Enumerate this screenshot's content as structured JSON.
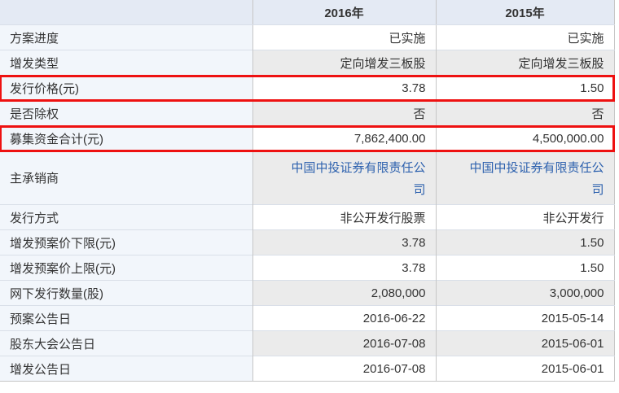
{
  "colors": {
    "highlight_border": "#ee1111",
    "link_text": "#2d61ae",
    "header_background": "#e4eaf4",
    "label_column_background": "#f2f6fb",
    "stripe_background": "#ebebeb"
  },
  "table": {
    "header": {
      "corner": "",
      "col2016": "2016年",
      "col2015": "2015年"
    },
    "rows": [
      {
        "label": "方案进度",
        "v2016": "已实施",
        "v2015": "已实施",
        "highlight": false,
        "link": false,
        "tall": false
      },
      {
        "label": "增发类型",
        "v2016": "定向增发三板股",
        "v2015": "定向增发三板股",
        "highlight": false,
        "link": false,
        "tall": false
      },
      {
        "label": "发行价格(元)",
        "v2016": "3.78",
        "v2015": "1.50",
        "highlight": true,
        "link": false,
        "tall": false
      },
      {
        "label": "是否除权",
        "v2016": "否",
        "v2015": "否",
        "highlight": false,
        "link": false,
        "tall": false
      },
      {
        "label": "募集资金合计(元)",
        "v2016": "7,862,400.00",
        "v2015": "4,500,000.00",
        "highlight": true,
        "link": false,
        "tall": false
      },
      {
        "label": "主承销商",
        "v2016": "中国中投证券有限责任公司",
        "v2015": "中国中投证券有限责任公司",
        "highlight": false,
        "link": true,
        "tall": true
      },
      {
        "label": "发行方式",
        "v2016": "非公开发行股票",
        "v2015": "非公开发行",
        "highlight": false,
        "link": false,
        "tall": false
      },
      {
        "label": "增发预案价下限(元)",
        "v2016": "3.78",
        "v2015": "1.50",
        "highlight": false,
        "link": false,
        "tall": false
      },
      {
        "label": "增发预案价上限(元)",
        "v2016": "3.78",
        "v2015": "1.50",
        "highlight": false,
        "link": false,
        "tall": false
      },
      {
        "label": "网下发行数量(股)",
        "v2016": "2,080,000",
        "v2015": "3,000,000",
        "highlight": false,
        "link": false,
        "tall": false
      },
      {
        "label": "预案公告日",
        "v2016": "2016-06-22",
        "v2015": "2015-05-14",
        "highlight": false,
        "link": false,
        "tall": false
      },
      {
        "label": "股东大会公告日",
        "v2016": "2016-07-08",
        "v2015": "2015-06-01",
        "highlight": false,
        "link": false,
        "tall": false
      },
      {
        "label": "增发公告日",
        "v2016": "2016-07-08",
        "v2015": "2015-06-01",
        "highlight": false,
        "link": false,
        "tall": false
      }
    ]
  }
}
